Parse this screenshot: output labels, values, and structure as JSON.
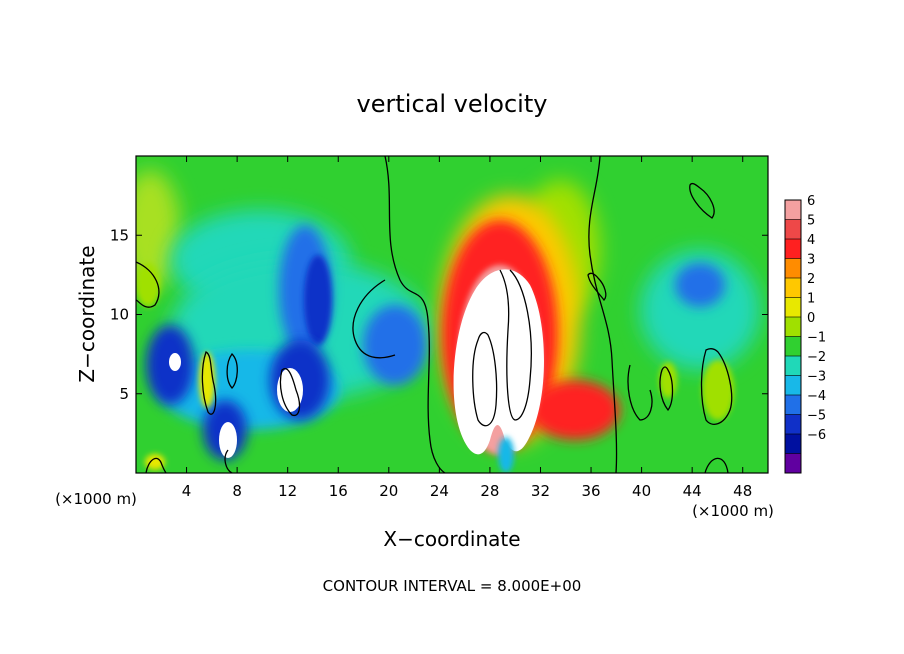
{
  "chart_data": {
    "type": "heatmap",
    "title": "vertical velocity",
    "xlabel": "X−coordinate",
    "ylabel": "Z−coordinate",
    "x_unit_left": "(×1000 m)",
    "x_unit_right": "(×1000 m)",
    "footer": "CONTOUR INTERVAL = 8.000E+00",
    "xlim": [
      0,
      50
    ],
    "ylim": [
      0,
      20
    ],
    "x_ticks": [
      4,
      8,
      12,
      16,
      20,
      24,
      28,
      32,
      36,
      40,
      44,
      48
    ],
    "x_tick_labels": [
      "4",
      "8",
      "12",
      "16",
      "20",
      "24",
      "28",
      "32",
      "36",
      "40",
      "44",
      "48"
    ],
    "y_ticks": [
      5,
      10,
      15
    ],
    "y_tick_labels": [
      "5",
      "10",
      "15"
    ],
    "colorbar": {
      "levels": [
        6,
        5,
        4,
        3,
        2,
        1,
        0,
        -1,
        -2,
        -3,
        -4,
        -5,
        -6
      ],
      "labels": [
        "6",
        "5",
        "4",
        "3",
        "2",
        "1",
        "0",
        "−1",
        "−2",
        "−3",
        "−4",
        "−5",
        "−6"
      ],
      "colors": [
        "#f4a0a0",
        "#ee4848",
        "#ff2020",
        "#ff8c00",
        "#ffc800",
        "#e8e800",
        "#a0e000",
        "#30d030",
        "#20d8b8",
        "#18b8e8",
        "#2070e8",
        "#1030c8",
        "#0010a0",
        "#6000a0"
      ]
    },
    "background_color": "#30d030",
    "features": [
      {
        "kind": "updraft",
        "x": 29,
        "z": 8,
        "value": 6
      },
      {
        "kind": "downdraft",
        "x": 13,
        "z": 10,
        "value": -5
      },
      {
        "kind": "downdraft",
        "x": 3,
        "z": 6,
        "value": -5
      },
      {
        "kind": "downdraft",
        "x": 7,
        "z": 2,
        "value": -6
      },
      {
        "kind": "downdraft",
        "x": 20,
        "z": 8,
        "value": -5
      },
      {
        "kind": "downdraft",
        "x": 45,
        "z": 12,
        "value": -3
      }
    ]
  }
}
